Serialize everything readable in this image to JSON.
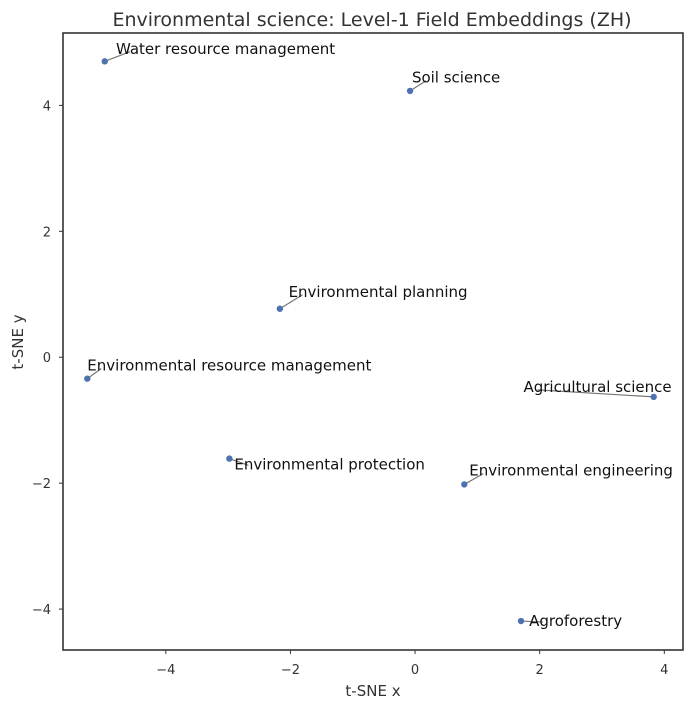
{
  "chart_data": {
    "type": "scatter",
    "title": "Environmental science: Level-1 Field Embeddings (ZH)",
    "xlabel": "t-SNE x",
    "ylabel": "t-SNE y",
    "xlim": [
      -5.65,
      4.3
    ],
    "ylim": [
      -4.65,
      5.15
    ],
    "xticks": [
      -4,
      -2,
      0,
      2,
      4
    ],
    "xtick_labels": [
      "−4",
      "−2",
      "0",
      "2",
      "4"
    ],
    "yticks": [
      -4,
      -2,
      0,
      2,
      4
    ],
    "ytick_labels": [
      "−4",
      "−2",
      "0",
      "2",
      "4"
    ],
    "grid": false,
    "color": "#4c72b0",
    "points": [
      {
        "label": "Water resource management",
        "x": -4.98,
        "y": 4.7,
        "lx": -4.8,
        "ly": 4.82,
        "anchor": "start"
      },
      {
        "label": "Soil science",
        "x": -0.08,
        "y": 4.23,
        "lx": -0.05,
        "ly": 4.36,
        "anchor": "start"
      },
      {
        "label": "Environmental planning",
        "x": -2.17,
        "y": 0.77,
        "lx": -2.03,
        "ly": 0.96,
        "anchor": "start"
      },
      {
        "label": "Environmental resource management",
        "x": -5.26,
        "y": -0.34,
        "lx": -5.26,
        "ly": -0.21,
        "anchor": "start"
      },
      {
        "label": "Agricultural science",
        "x": 3.83,
        "y": -0.63,
        "lx": 1.74,
        "ly": -0.55,
        "anchor": "start"
      },
      {
        "label": "Environmental protection",
        "x": -2.98,
        "y": -1.61,
        "lx": -2.9,
        "ly": -1.78,
        "anchor": "start"
      },
      {
        "label": "Environmental engineering",
        "x": 0.79,
        "y": -2.02,
        "lx": 0.87,
        "ly": -1.88,
        "anchor": "start"
      },
      {
        "label": "Agroforestry",
        "x": 1.7,
        "y": -4.19,
        "lx": 1.83,
        "ly": -4.27,
        "anchor": "start"
      }
    ]
  }
}
